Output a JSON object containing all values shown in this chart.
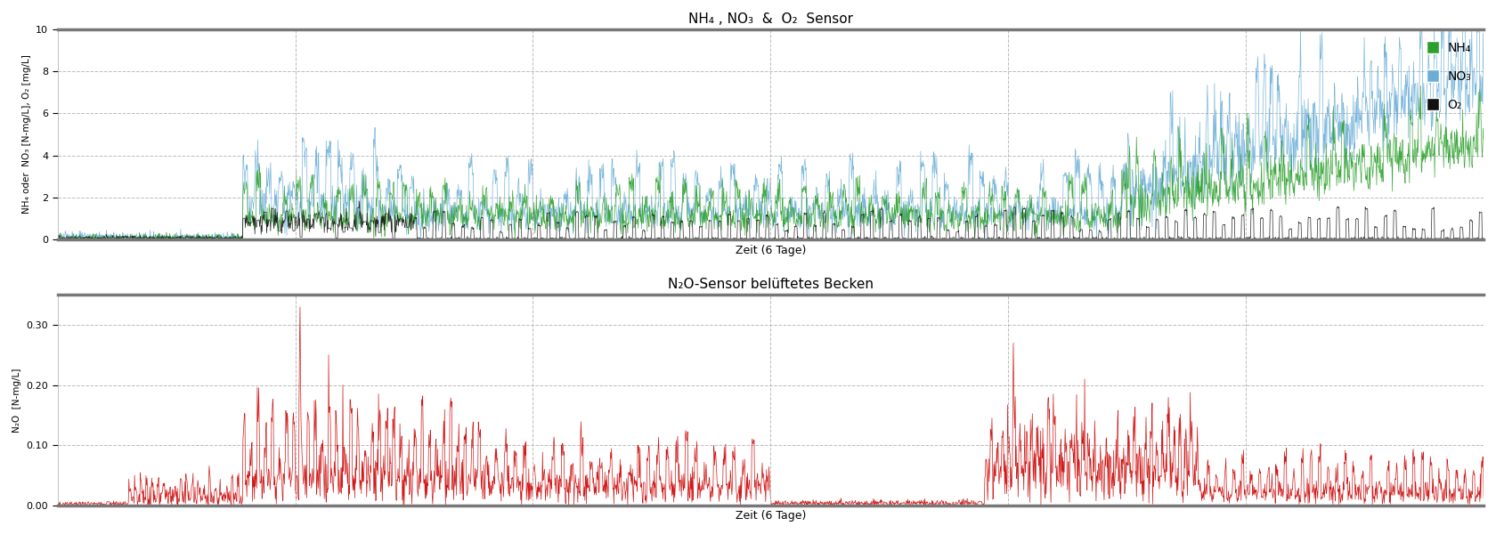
{
  "title1": "NH₄ , NO₃  &  O₂  Sensor",
  "title2": "N₂O-Sensor belüftetes Becken",
  "xlabel": "Zeit (6 Tage)",
  "ylabel1": "NH₄ oder  NO₃ [N-mg/L], O₂ [mg/L]",
  "ylabel2": "N₂O  [N-mg/L]",
  "ylim1": [
    0,
    10
  ],
  "ylim2": [
    0,
    0.35
  ],
  "yticks1": [
    0,
    2,
    4,
    6,
    8,
    10
  ],
  "yticks2": [
    0.0,
    0.1,
    0.2,
    0.3
  ],
  "legend_labels": [
    "NH₄",
    "NO₃",
    "O₂"
  ],
  "legend_colors": [
    "#2ca02c",
    "#6baed6",
    "#111111"
  ],
  "line_color_n2o": "#cc0000",
  "bg_color": "#ffffff",
  "plot_bg": "#ffffff",
  "grid_color": "#bbbbbb",
  "n_points": 3000,
  "dpi": 100,
  "figsize": [
    16.8,
    6.0
  ]
}
